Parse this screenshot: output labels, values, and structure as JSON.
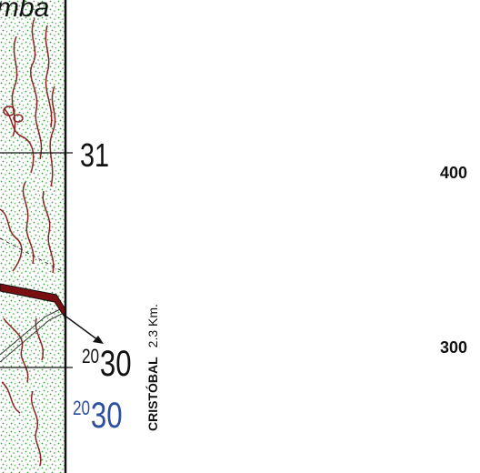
{
  "map": {
    "place_label": "mba",
    "grid_label_31": "31",
    "grid_label_2030": {
      "prefix": "20",
      "main": "30"
    },
    "grid_label_2030_blue": {
      "prefix": "20",
      "main": "30"
    },
    "road_destination": "CRISTÓBAL",
    "road_distance": "2.3 Km.",
    "easting_tick_400": "400",
    "easting_tick_300": "300"
  },
  "colors": {
    "vegetation_dots": "#3aa63a",
    "contour": "#8b2323",
    "road_fill": "#7a0f12",
    "frame": "#111111",
    "blue_label": "#2d4f9e"
  },
  "icons": {
    "direction_arrow": "arrow-icon"
  }
}
